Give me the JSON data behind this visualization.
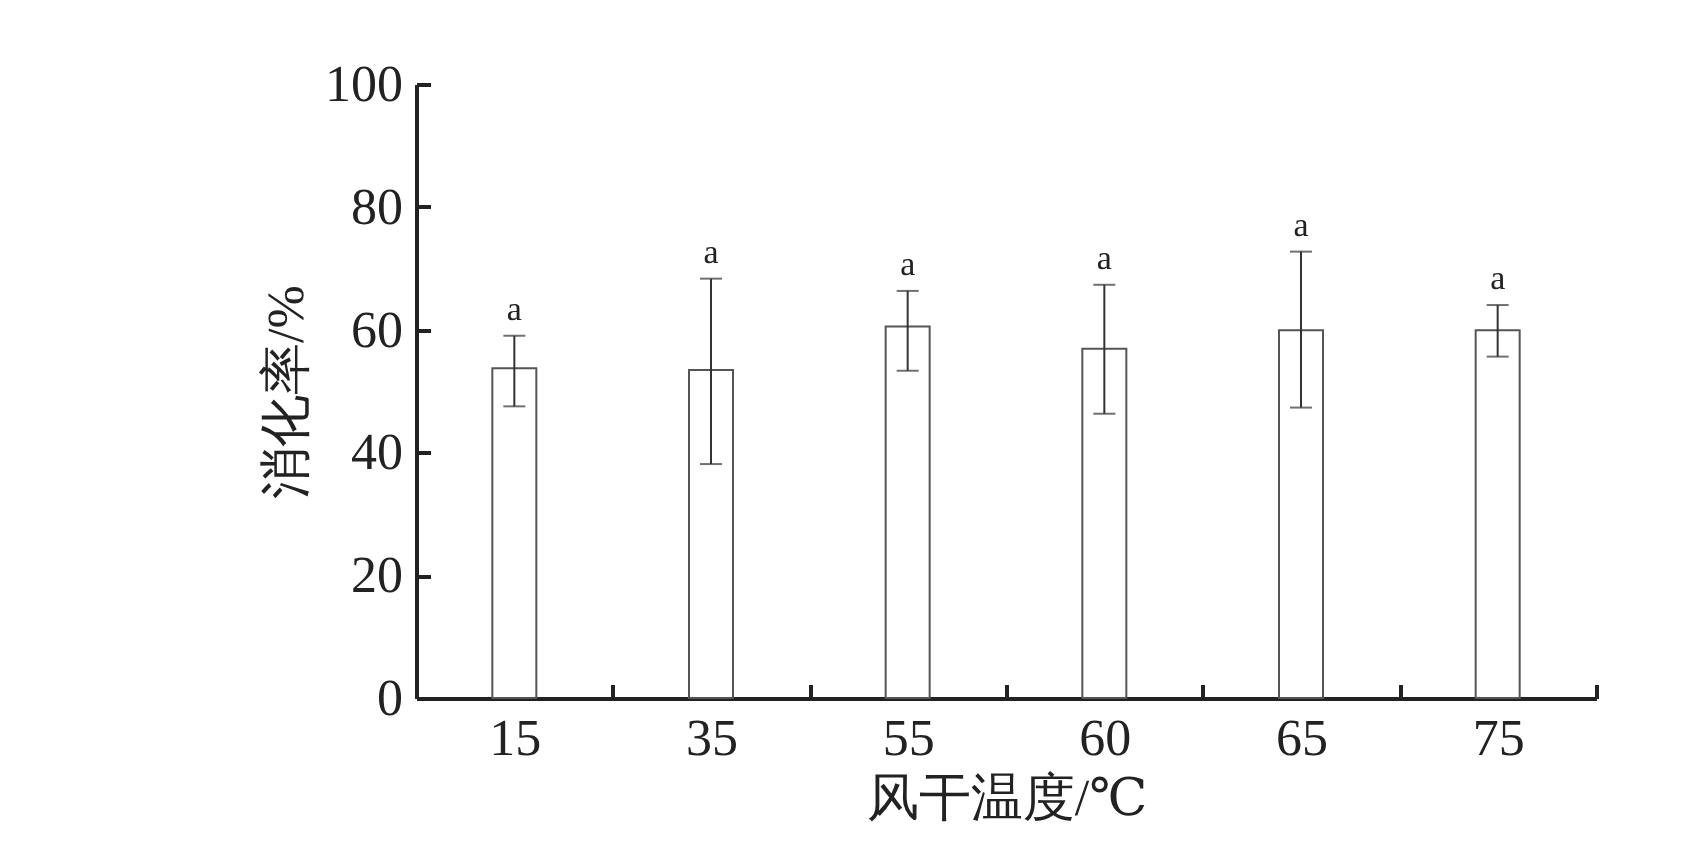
{
  "chart_data": {
    "type": "bar",
    "xlabel": "风干温度/℃",
    "ylabel": "消化率/%",
    "categories": [
      "15",
      "35",
      "55",
      "60",
      "65",
      "75"
    ],
    "values": [
      53.7,
      53.4,
      60.5,
      56.9,
      59.9,
      59.9
    ],
    "errors": [
      [
        47.5,
        59.0
      ],
      [
        38.1,
        68.3
      ],
      [
        53.3,
        66.3
      ],
      [
        46.3,
        67.3
      ],
      [
        47.3,
        72.7
      ],
      [
        55.6,
        64.0
      ]
    ],
    "color": "#ffffff",
    "ylim": [
      0,
      100
    ],
    "yticks": [
      0,
      20,
      40,
      60,
      80,
      100
    ],
    "grid": false,
    "annotations": [
      {
        "text": "a",
        "x": "15",
        "y": 59.0
      },
      {
        "text": "a",
        "x": "35",
        "y": 68.3
      },
      {
        "text": "a",
        "x": "55",
        "y": 66.3
      },
      {
        "text": "a",
        "x": "60",
        "y": 67.3
      },
      {
        "text": "a",
        "x": "65",
        "y": 72.7
      },
      {
        "text": "a",
        "x": "75",
        "y": 64.0
      }
    ]
  }
}
